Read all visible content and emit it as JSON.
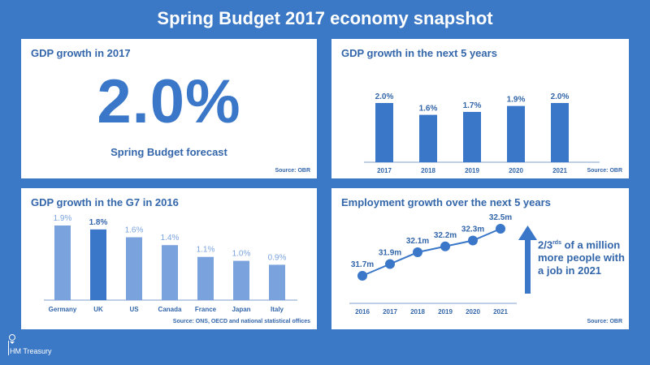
{
  "title": "Spring Budget 2017 economy snapshot",
  "colors": {
    "background": "#3b78c6",
    "bar": "#3a77c8",
    "bar_light": "#7aa3dd",
    "text_blue": "#3366aa"
  },
  "panel1": {
    "title": "GDP growth in 2017",
    "value": "2.0%",
    "subtitle": "Spring Budget forecast",
    "source": "Source: OBR"
  },
  "panel2": {
    "title": "GDP growth in the next 5 years",
    "source": "Source: OBR"
  },
  "panel3": {
    "title": "GDP growth in the G7 in 2016",
    "source": "Source: ONS, OECD and national statistical offices"
  },
  "panel4": {
    "title": "Employment growth over the next 5 years",
    "source": "Source: OBR",
    "callout_pre": "2/3",
    "callout_sup": "rds",
    "callout_rest": " of a million more people with a job in 2021"
  },
  "logo": {
    "text": "HM Treasury"
  },
  "chart_data": [
    {
      "type": "bar",
      "title": "GDP growth in the next 5 years",
      "categories": [
        "2017",
        "2018",
        "2019",
        "2020",
        "2021"
      ],
      "values": [
        2.0,
        1.6,
        1.7,
        1.9,
        2.0
      ],
      "labels": [
        "2.0%",
        "1.6%",
        "1.7%",
        "1.9%",
        "2.0%"
      ],
      "ylim": [
        0,
        2.0
      ]
    },
    {
      "type": "bar",
      "title": "GDP growth in the G7 in 2016",
      "categories": [
        "Germany",
        "UK",
        "US",
        "Canada",
        "France",
        "Japan",
        "Italy"
      ],
      "values": [
        1.9,
        1.8,
        1.6,
        1.4,
        1.1,
        1.0,
        0.9
      ],
      "labels": [
        "1.9%",
        "1.8%",
        "1.6%",
        "1.4%",
        "1.1%",
        "1.0%",
        "0.9%"
      ],
      "highlight": "UK",
      "ylim": [
        0,
        1.9
      ]
    },
    {
      "type": "line",
      "title": "Employment growth over the next 5 years",
      "categories": [
        "2016",
        "2017",
        "2018",
        "2019",
        "2020",
        "2021"
      ],
      "values": [
        31.7,
        31.9,
        32.1,
        32.2,
        32.3,
        32.5
      ],
      "labels": [
        "31.7m",
        "31.9m",
        "32.1m",
        "32.2m",
        "32.3m",
        "32.5m"
      ]
    }
  ]
}
